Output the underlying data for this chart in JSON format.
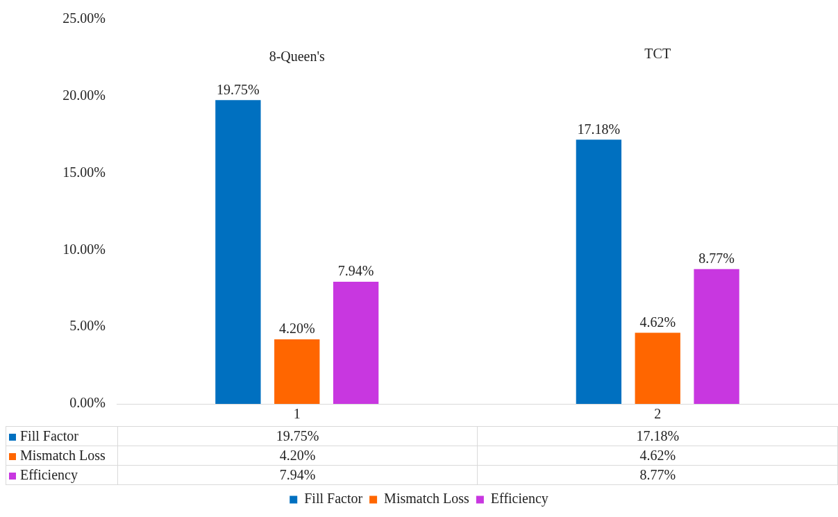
{
  "chart_data": {
    "type": "bar",
    "categories": [
      "1",
      "2"
    ],
    "series": [
      {
        "name": "Fill Factor",
        "color": "#0070c0",
        "values": [
          19.75,
          17.18
        ],
        "value_labels": [
          "19.75%",
          "17.18%"
        ]
      },
      {
        "name": "Mismatch Loss",
        "color": "#ff6600",
        "values": [
          4.2,
          4.62
        ],
        "value_labels": [
          "4.20%",
          "4.62%"
        ]
      },
      {
        "name": "Efficiency",
        "color": "#c837e0",
        "values": [
          7.94,
          8.77
        ],
        "value_labels": [
          "7.94%",
          "8.77%"
        ]
      }
    ],
    "ylim": [
      0,
      25
    ],
    "yticks": [
      {
        "value": 0,
        "label": "0.00%"
      },
      {
        "value": 5,
        "label": "5.00%"
      },
      {
        "value": 10,
        "label": "10.00%"
      },
      {
        "value": 15,
        "label": "15.00%"
      },
      {
        "value": 20,
        "label": "20.00%"
      },
      {
        "value": 25,
        "label": "25.00%"
      }
    ],
    "annotations": [
      "8-Queen's",
      "TCT"
    ],
    "grid": false,
    "legend": "bottom"
  }
}
